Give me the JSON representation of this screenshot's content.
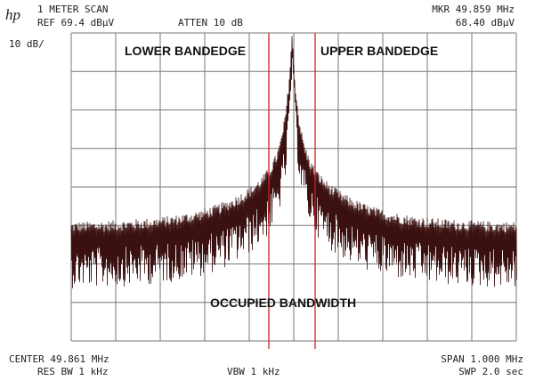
{
  "header": {
    "scan": "1 METER SCAN",
    "ref": "REF 69.4 dBµV",
    "atten": "ATTEN 10 dB",
    "marker_freq": "MKR 49.859 MHz",
    "marker_level": "68.40 dBµV",
    "scale": "10 dB/",
    "logo": "hp"
  },
  "annotations": {
    "lower": "LOWER BANDEDGE",
    "upper": "UPPER BANDEDGE",
    "occupied": "OCCUPIED BANDWIDTH"
  },
  "footer": {
    "center": "CENTER 49.861 MHz",
    "res_bw": "RES BW 1 kHz",
    "vbw": "VBW 1 kHz",
    "span": "SPAN 1.000 MHz",
    "sweep": "SWP 2.0  sec"
  }
}
